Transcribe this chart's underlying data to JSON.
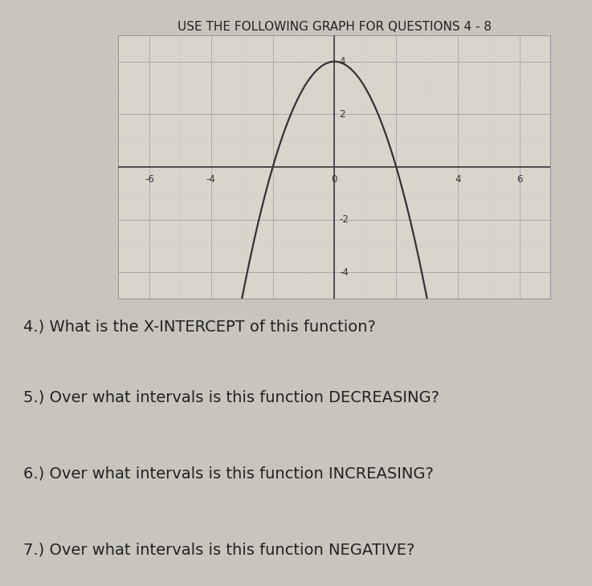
{
  "title": "USE THE FOLLOWING GRAPH FOR QUESTIONS 4 - 8",
  "title_fontsize": 11,
  "questions": [
    [
      "4.) What is the ",
      "X-INTERCEPT",
      " of this function?"
    ],
    [
      "5.) Over what intervals is this function ",
      "DECREASING",
      "?"
    ],
    [
      "6.) Over what intervals is this function ",
      "INCREASING",
      "?"
    ],
    [
      "7.) Over what intervals is this function ",
      "NEGATIVE",
      "?"
    ]
  ],
  "question_fontsize": 14,
  "xlim": [
    -7,
    7
  ],
  "ylim": [
    -5,
    5
  ],
  "xticks": [
    -6,
    -4,
    -2,
    0,
    2,
    4,
    6
  ],
  "yticks": [
    -4,
    -2,
    0,
    2,
    4
  ],
  "x_labels": {
    "-6": "-6",
    "-4": "-4",
    "0": "0",
    "4": "4",
    "6": "6"
  },
  "y_labels": {
    "-4": "-4",
    "-2": "-2",
    "2": "2",
    "4": "4"
  },
  "grid_major_color": "#aaaaaa",
  "grid_minor_color": "#cccccc",
  "axis_color": "#444444",
  "curve_color": "#333333",
  "curve_linewidth": 1.6,
  "background_color": "#c8c5bc",
  "graph_bg_color": "#d8d5cb",
  "a": -1,
  "b": 0,
  "c": 4,
  "x_range": [
    -7,
    7
  ]
}
